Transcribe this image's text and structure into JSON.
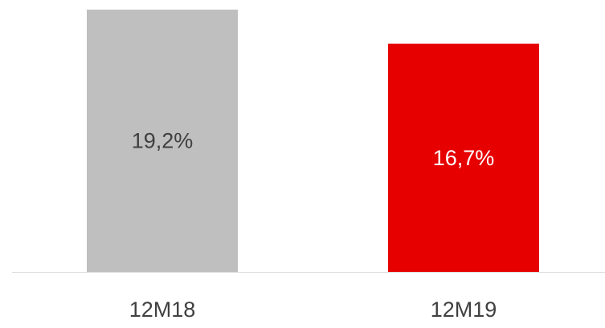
{
  "chart_data": {
    "type": "bar",
    "categories": [
      "12M18",
      "12M19"
    ],
    "values": [
      19.2,
      16.7
    ],
    "value_labels": [
      "19,2%",
      "16,7%"
    ],
    "colors": [
      "#bfbfbf",
      "#e60000"
    ]
  }
}
